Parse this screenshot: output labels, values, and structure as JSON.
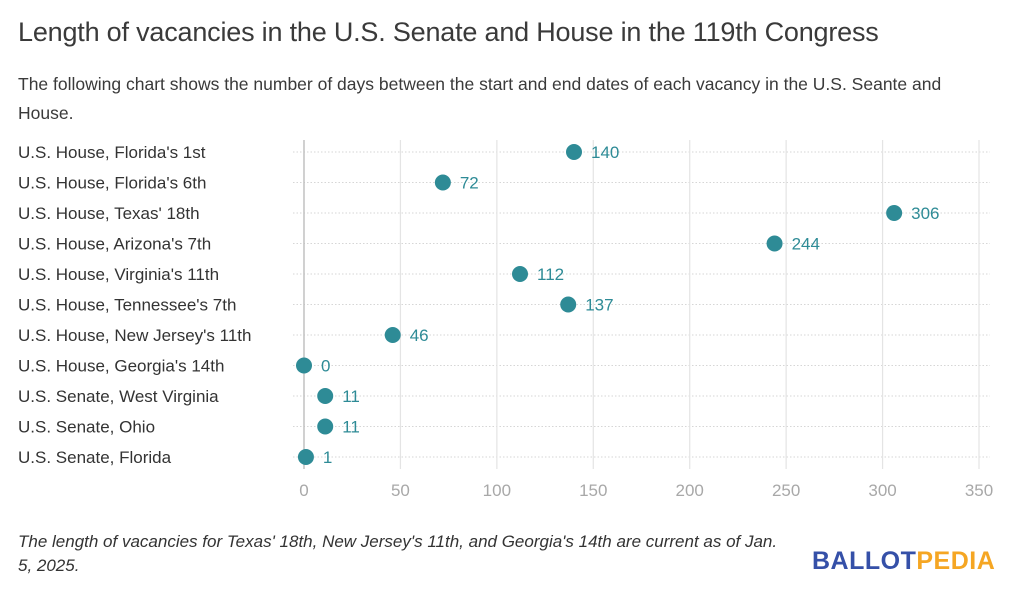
{
  "header": {
    "title": "Length of vacancies in the U.S. Senate and House in the 119th Congress",
    "subtitle": "The following chart shows the number of days between the start and end dates of each vacancy in the U.S. Seante and House."
  },
  "footer": {
    "note": "The length of vacancies for Texas' 18th, New Jersey's 11th, and Georgia's 14th are current as of Jan. 5, 2025.",
    "logo_part1": "BALLOT",
    "logo_part2": "PEDIA"
  },
  "colors": {
    "dot": "#2e8b96",
    "logo_blue": "#3550a8",
    "logo_orange": "#f5a623"
  },
  "chart_data": {
    "type": "scatter",
    "subtype": "dot-plot",
    "title": "Length of vacancies in the U.S. Senate and House in the 119th Congress",
    "xlabel": "",
    "ylabel": "",
    "xlim": [
      0,
      350
    ],
    "x_ticks": [
      0,
      50,
      100,
      150,
      200,
      250,
      300,
      350
    ],
    "grid": true,
    "legend": "none",
    "categories": [
      "U.S. House, Florida's 1st",
      "U.S. House, Florida's 6th",
      "U.S. House, Texas' 18th",
      "U.S. House, Arizona's 7th",
      "U.S. House, Virginia's 11th",
      "U.S. House, Tennessee's 7th",
      "U.S. House, New Jersey's 11th",
      "U.S. House, Georgia's 14th",
      "U.S. Senate, West Virginia",
      "U.S. Senate, Ohio",
      "U.S. Senate, Florida"
    ],
    "values": [
      140,
      72,
      306,
      244,
      112,
      137,
      46,
      0,
      11,
      11,
      1
    ]
  }
}
